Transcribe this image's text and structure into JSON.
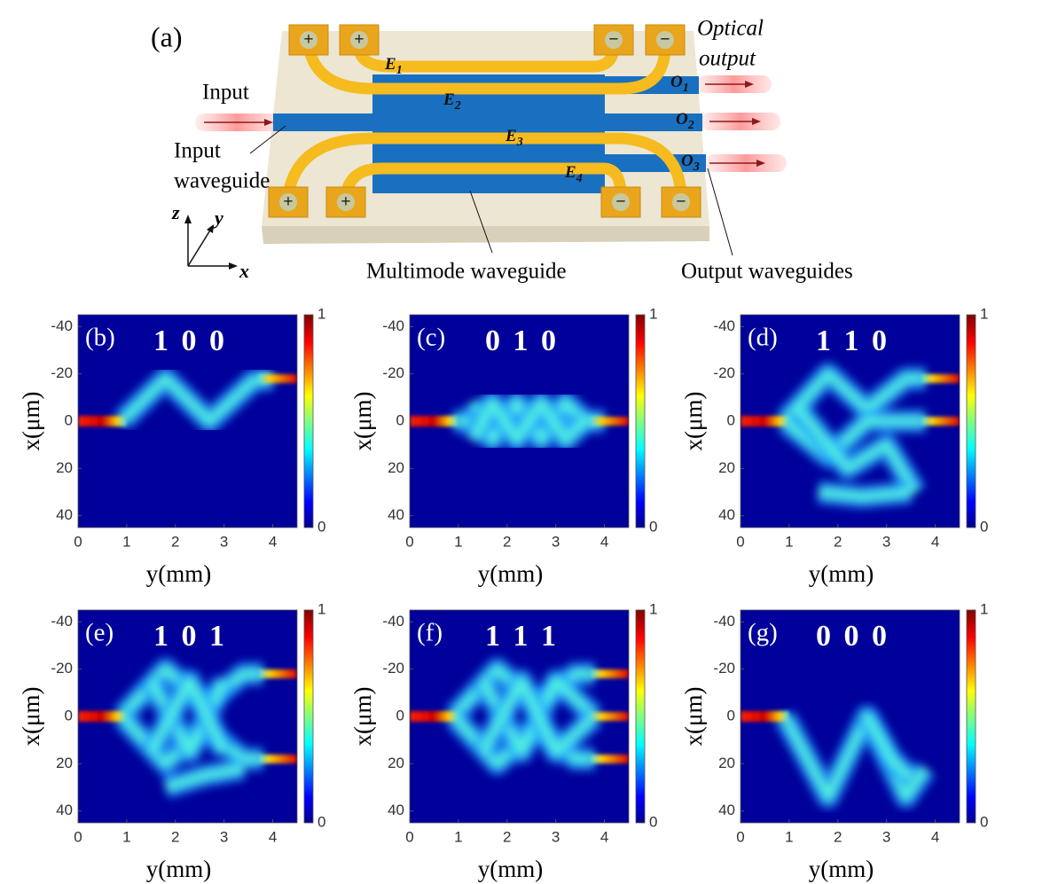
{
  "schematic": {
    "label": "(a)",
    "input": "Input",
    "input_waveguide": [
      "Input",
      "waveguide"
    ],
    "optical_output": [
      "Optical",
      "output"
    ],
    "plus": "+",
    "minus": "−",
    "electrodes": [
      {
        "letter": "E",
        "index": "1"
      },
      {
        "letter": "E",
        "index": "2"
      },
      {
        "letter": "E",
        "index": "3"
      },
      {
        "letter": "E",
        "index": "4"
      }
    ],
    "outputs": [
      {
        "letter": "O",
        "index": "1"
      },
      {
        "letter": "O",
        "index": "2"
      },
      {
        "letter": "O",
        "index": "3"
      }
    ],
    "multimode_waveguide": "Multimode waveguide",
    "output_waveguides": "Output waveguides",
    "axes": [
      "z",
      "y",
      "x"
    ]
  },
  "panels": [
    {
      "label": "(b)",
      "code": "1 0 0"
    },
    {
      "label": "(c)",
      "code": "0 1 0"
    },
    {
      "label": "(d)",
      "code": "1 1 0"
    },
    {
      "label": "(e)",
      "code": "1 0 1"
    },
    {
      "label": "(f)",
      "code": "1 1 1"
    },
    {
      "label": "(g)",
      "code": "0 0 0"
    }
  ],
  "plot_axes": {
    "xlabel": "y(mm)",
    "ylabel": "x(μm)",
    "xlim": [
      0,
      4.5
    ],
    "xticks": [
      0,
      1,
      2,
      3,
      4
    ],
    "ylim": [
      -45,
      45
    ],
    "yticks": [
      -40,
      -20,
      0,
      20,
      40
    ],
    "colorbar_lim": [
      0,
      1
    ],
    "colorbar_ticks": [
      0,
      1
    ]
  }
}
